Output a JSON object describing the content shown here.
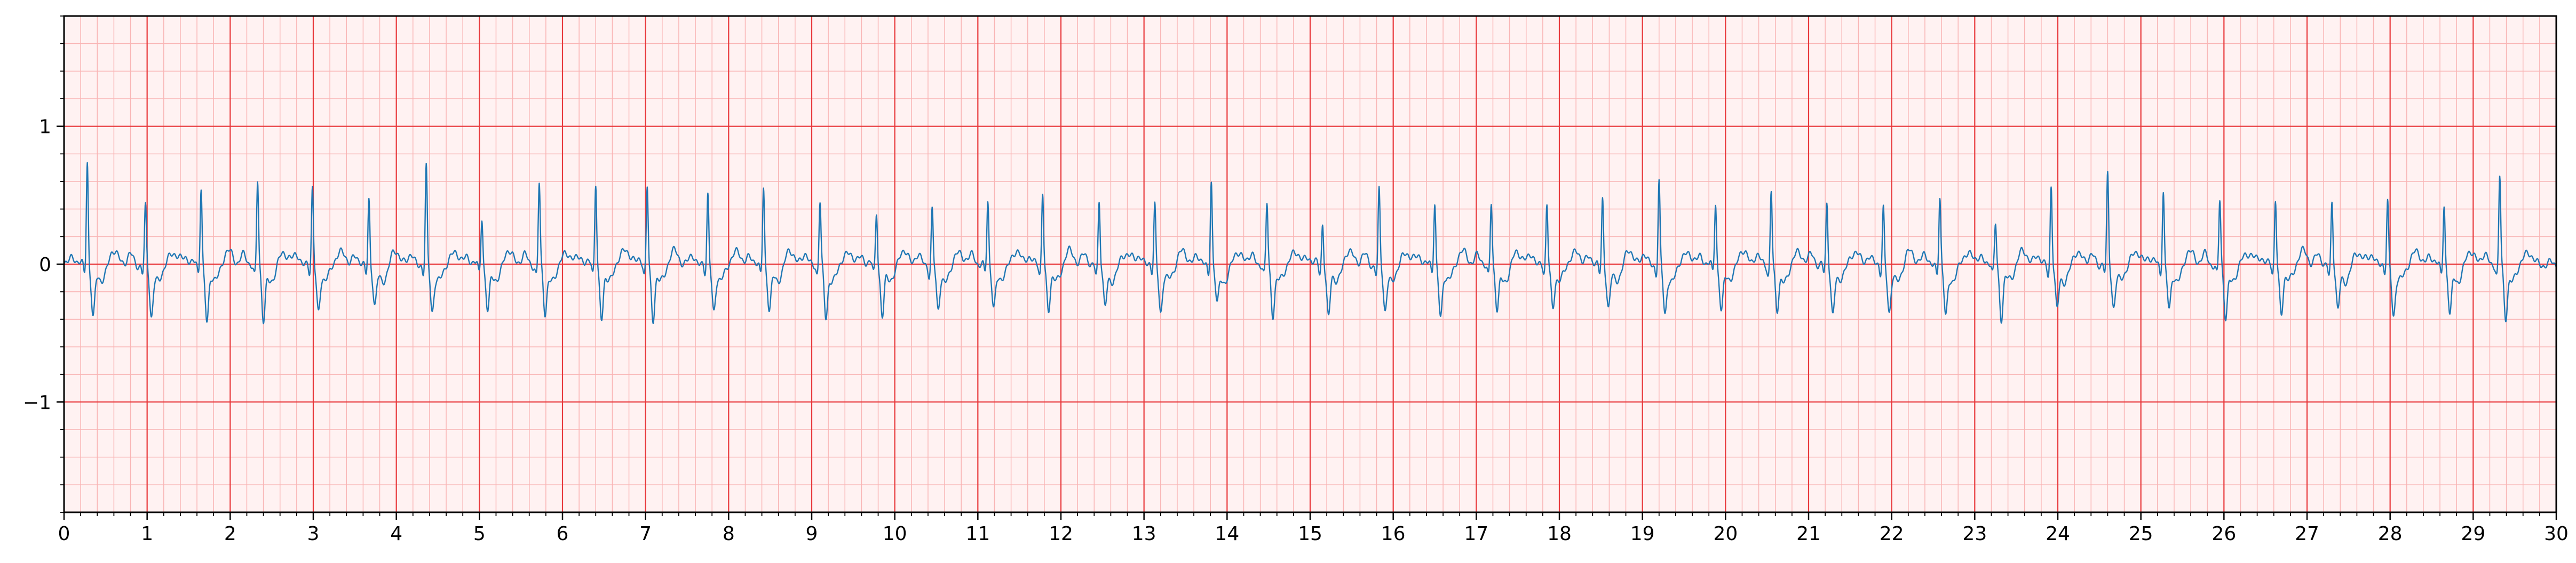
{
  "chart_data": {
    "type": "line",
    "title": "",
    "xlabel": "",
    "ylabel": "",
    "xlim": [
      0,
      30
    ],
    "ylim": [
      -1.8,
      1.8
    ],
    "x_ticks": [
      "0",
      "1",
      "2",
      "3",
      "4",
      "5",
      "6",
      "7",
      "8",
      "9",
      "10",
      "11",
      "12",
      "13",
      "14",
      "15",
      "16",
      "17",
      "18",
      "19",
      "20",
      "21",
      "22",
      "23",
      "24",
      "25",
      "26",
      "27",
      "28",
      "29",
      "30"
    ],
    "y_ticks": [
      {
        "value": 1,
        "label": "1"
      },
      {
        "value": 0,
        "label": "0"
      },
      {
        "value": -1,
        "label": "−1"
      }
    ],
    "grid": {
      "major_x_step": 1,
      "major_y_step": 1,
      "minor_x_step": 0.2,
      "minor_y_step": 0.2,
      "major_color": "#e8393c",
      "minor_color": "#f9b5b5"
    },
    "line_color": "#1f77b4",
    "background": "#fff2f2",
    "series": [
      {
        "beat_times": [
          0.28,
          0.98,
          1.65,
          2.33,
          2.99,
          3.67,
          4.36,
          5.03,
          5.72,
          6.4,
          7.02,
          7.75,
          8.42,
          9.1,
          9.78,
          10.45,
          11.12,
          11.78,
          12.46,
          13.13,
          13.81,
          14.48,
          15.15,
          15.83,
          16.5,
          17.18,
          17.85,
          18.52,
          19.2,
          19.88,
          20.55,
          21.22,
          21.9,
          22.58,
          23.25,
          23.92,
          24.6,
          25.27,
          25.95,
          26.62,
          27.3,
          27.97,
          28.65,
          29.32
        ],
        "r_peaks": [
          0.76,
          0.41,
          0.57,
          0.61,
          0.55,
          0.48,
          0.7,
          0.35,
          0.58,
          0.6,
          0.59,
          0.5,
          0.57,
          0.45,
          0.39,
          0.4,
          0.45,
          0.53,
          0.45,
          0.43,
          0.62,
          0.43,
          0.31,
          0.53,
          0.45,
          0.45,
          0.43,
          0.48,
          0.6,
          0.45,
          0.54,
          0.43,
          0.42,
          0.48,
          0.3,
          0.58,
          0.64,
          0.55,
          0.46,
          0.47,
          0.45,
          0.45,
          0.45,
          0.63
        ],
        "s_troughs": [
          -0.35,
          -0.34,
          -0.38,
          -0.38,
          -0.3,
          -0.27,
          -0.3,
          -0.3,
          -0.32,
          -0.36,
          -0.38,
          -0.3,
          -0.3,
          -0.35,
          -0.34,
          -0.3,
          -0.27,
          -0.3,
          -0.27,
          -0.3,
          -0.26,
          -0.32,
          -0.35,
          -0.3,
          -0.34,
          -0.3,
          -0.27,
          -0.28,
          -0.33,
          -0.29,
          -0.31,
          -0.32,
          -0.32,
          -0.34,
          -0.35,
          -0.3,
          -0.26,
          -0.3,
          -0.35,
          -0.32,
          -0.3,
          -0.33,
          -0.34,
          -0.35
        ]
      }
    ]
  }
}
